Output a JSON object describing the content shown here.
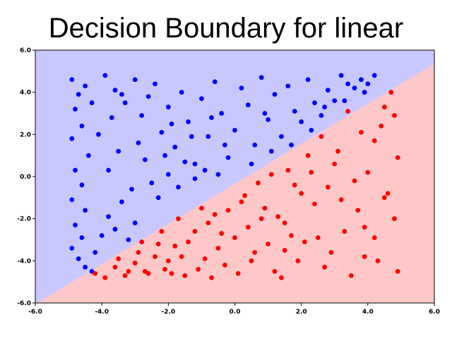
{
  "chart_data": {
    "type": "scatter",
    "title": "Decision Boundary for linear",
    "xlabel": "",
    "ylabel": "",
    "xlim": [
      -6,
      6
    ],
    "ylim": [
      -6,
      6
    ],
    "xticks": [
      "-6.0",
      "-4.0",
      "-2.0",
      "0.0",
      "2.0",
      "4.0",
      "6.0"
    ],
    "yticks": [
      "-6.0",
      "-4.0",
      "-2.0",
      "0.0",
      "2.0",
      "4.0",
      "6.0"
    ],
    "grid": false,
    "legend": "none",
    "decision_boundary": {
      "model": "linear",
      "line": {
        "slope": 0.95,
        "intercept": -0.35
      },
      "region_above_color": "#c8c8ff",
      "region_below_color": "#ffc8c8"
    },
    "series": [
      {
        "color": "#0000ff",
        "points": [
          [
            -4.9,
            4.6
          ],
          [
            -4.7,
            3.9
          ],
          [
            -4.8,
            3.2
          ],
          [
            -4.5,
            4.3
          ],
          [
            -4.6,
            2.4
          ],
          [
            -4.9,
            1.8
          ],
          [
            -4.4,
            1.0
          ],
          [
            -4.8,
            0.3
          ],
          [
            -4.6,
            -0.4
          ],
          [
            -4.9,
            -1.1
          ],
          [
            -4.5,
            -1.6
          ],
          [
            -4.8,
            -2.3
          ],
          [
            -4.6,
            -2.9
          ],
          [
            -4.9,
            -3.4
          ],
          [
            -4.7,
            -3.9
          ],
          [
            -4.5,
            -4.3
          ],
          [
            -4.3,
            -4.5
          ],
          [
            -4.2,
            -3.6
          ],
          [
            -4.0,
            -2.8
          ],
          [
            -3.8,
            -1.9
          ],
          [
            -3.6,
            -2.5
          ],
          [
            -3.4,
            -1.2
          ],
          [
            -3.2,
            -3.0
          ],
          [
            -3.0,
            -2.2
          ],
          [
            -3.9,
            4.8
          ],
          [
            -3.6,
            4.1
          ],
          [
            -3.3,
            3.5
          ],
          [
            -3.0,
            4.6
          ],
          [
            -2.8,
            2.9
          ],
          [
            -2.6,
            3.8
          ],
          [
            -2.4,
            4.4
          ],
          [
            -2.2,
            2.1
          ],
          [
            -2.0,
            3.3
          ],
          [
            -1.8,
            1.4
          ],
          [
            -1.6,
            4.0
          ],
          [
            -1.4,
            2.6
          ],
          [
            -1.2,
            0.6
          ],
          [
            -1.0,
            3.7
          ],
          [
            -0.8,
            1.9
          ],
          [
            -0.6,
            4.5
          ],
          [
            -0.4,
            3.0
          ],
          [
            -0.2,
            0.9
          ],
          [
            0.0,
            2.2
          ],
          [
            0.2,
            4.2
          ],
          [
            0.4,
            3.4
          ],
          [
            0.6,
            1.5
          ],
          [
            0.8,
            4.7
          ],
          [
            1.0,
            2.7
          ],
          [
            1.2,
            3.9
          ],
          [
            1.4,
            1.9
          ],
          [
            1.6,
            4.3
          ],
          [
            1.8,
            3.1
          ],
          [
            2.0,
            2.6
          ],
          [
            2.2,
            4.6
          ],
          [
            2.4,
            3.5
          ],
          [
            2.6,
            2.9
          ],
          [
            2.8,
            4.1
          ],
          [
            3.0,
            3.6
          ],
          [
            3.2,
            4.8
          ],
          [
            3.4,
            4.4
          ],
          [
            3.6,
            4.2
          ],
          [
            3.8,
            4.6
          ],
          [
            4.0,
            4.4
          ],
          [
            4.2,
            4.8
          ],
          [
            -3.8,
            0.3
          ],
          [
            -3.5,
            1.2
          ],
          [
            -3.1,
            -0.6
          ],
          [
            -2.7,
            0.8
          ],
          [
            -2.5,
            -0.3
          ],
          [
            -2.3,
            -1.0
          ],
          [
            -2.0,
            0.1
          ],
          [
            -1.7,
            -0.5
          ],
          [
            -1.5,
            0.7
          ],
          [
            -1.2,
            -0.1
          ],
          [
            -0.9,
            0.3
          ],
          [
            -0.5,
            0.1
          ],
          [
            -4.1,
            2.0
          ],
          [
            -3.7,
            2.8
          ],
          [
            -2.9,
            1.6
          ],
          [
            -2.1,
            1.0
          ],
          [
            -1.3,
            1.9
          ],
          [
            -0.3,
            1.5
          ],
          [
            0.5,
            0.6
          ],
          [
            1.1,
            1.2
          ],
          [
            1.7,
            1.5
          ],
          [
            2.3,
            2.2
          ],
          [
            -4.3,
            3.5
          ],
          [
            -3.4,
            3.9
          ],
          [
            -1.9,
            2.5
          ],
          [
            -0.7,
            2.8
          ],
          [
            0.9,
            3.0
          ],
          [
            2.7,
            3.3
          ],
          [
            3.3,
            3.6
          ],
          [
            3.9,
            4.0
          ]
        ]
      },
      {
        "color": "#ff0000",
        "points": [
          [
            -4.2,
            -4.6
          ],
          [
            -3.9,
            -4.8
          ],
          [
            -3.6,
            -4.3
          ],
          [
            -3.3,
            -4.7
          ],
          [
            -3.0,
            -4.1
          ],
          [
            -2.7,
            -4.5
          ],
          [
            -2.4,
            -3.8
          ],
          [
            -2.1,
            -4.4
          ],
          [
            -1.8,
            -3.3
          ],
          [
            -1.5,
            -4.7
          ],
          [
            -1.2,
            -2.6
          ],
          [
            -0.9,
            -3.9
          ],
          [
            -0.6,
            -1.8
          ],
          [
            -0.3,
            -4.2
          ],
          [
            0.0,
            -2.9
          ],
          [
            0.3,
            -0.9
          ],
          [
            0.6,
            -3.6
          ],
          [
            0.9,
            -1.5
          ],
          [
            1.2,
            -4.5
          ],
          [
            1.5,
            -2.2
          ],
          [
            1.8,
            -0.4
          ],
          [
            2.1,
            -3.1
          ],
          [
            2.4,
            -1.3
          ],
          [
            2.7,
            -4.3
          ],
          [
            3.0,
            0.6
          ],
          [
            3.3,
            -2.6
          ],
          [
            3.6,
            -0.2
          ],
          [
            3.9,
            -3.8
          ],
          [
            4.2,
            1.7
          ],
          [
            4.5,
            -1.0
          ],
          [
            4.8,
            2.9
          ],
          [
            4.9,
            -4.5
          ],
          [
            4.7,
            4.0
          ],
          [
            4.5,
            3.3
          ],
          [
            4.2,
            -2.9
          ],
          [
            3.8,
            2.1
          ],
          [
            3.5,
            -4.7
          ],
          [
            3.1,
            1.2
          ],
          [
            2.8,
            -0.5
          ],
          [
            2.5,
            -2.9
          ],
          [
            2.2,
            1.0
          ],
          [
            1.9,
            -4.0
          ],
          [
            1.6,
            0.3
          ],
          [
            1.3,
            -1.9
          ],
          [
            1.0,
            -3.2
          ],
          [
            0.7,
            -0.3
          ],
          [
            0.4,
            -2.4
          ],
          [
            0.1,
            -4.6
          ],
          [
            -0.2,
            -1.6
          ],
          [
            -0.5,
            -3.4
          ],
          [
            -0.8,
            -2.2
          ],
          [
            -1.1,
            -4.4
          ],
          [
            -1.4,
            -3.1
          ],
          [
            -1.7,
            -2.0
          ],
          [
            -2.0,
            -4.0
          ],
          [
            -2.3,
            -3.2
          ],
          [
            -2.6,
            -4.6
          ],
          [
            -2.9,
            -3.6
          ],
          [
            -3.2,
            -4.5
          ],
          [
            -3.5,
            -3.9
          ],
          [
            4.0,
            0.2
          ],
          [
            3.7,
            -1.6
          ],
          [
            3.4,
            3.1
          ],
          [
            4.6,
            -0.8
          ],
          [
            4.3,
            -4.0
          ],
          [
            2.9,
            -3.6
          ],
          [
            2.6,
            1.9
          ],
          [
            2.0,
            -0.8
          ],
          [
            1.7,
            -2.8
          ],
          [
            1.4,
            -4.8
          ],
          [
            1.1,
            0.1
          ],
          [
            0.8,
            -2.0
          ],
          [
            0.2,
            -1.2
          ],
          [
            -0.4,
            -2.7
          ],
          [
            -1.0,
            -1.5
          ],
          [
            -1.6,
            -3.8
          ],
          [
            -2.2,
            -2.6
          ],
          [
            -2.8,
            -3.1
          ],
          [
            3.2,
            -1.1
          ],
          [
            3.9,
            -2.4
          ],
          [
            4.4,
            2.4
          ],
          [
            4.9,
            0.9
          ],
          [
            4.8,
            -2.0
          ],
          [
            2.3,
            0.2
          ],
          [
            1.5,
            -3.5
          ],
          [
            0.5,
            -4.0
          ],
          [
            -0.7,
            -4.8
          ],
          [
            -1.9,
            -4.6
          ]
        ]
      }
    ]
  }
}
